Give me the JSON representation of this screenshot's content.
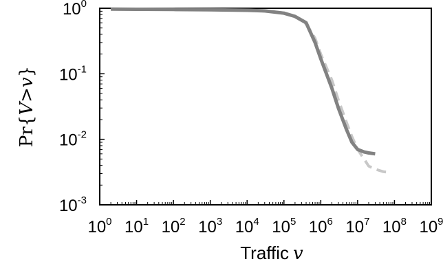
{
  "chart_data": {
    "type": "line",
    "xscale": "log",
    "yscale": "log",
    "xlim": [
      1,
      1000000000
    ],
    "ylim": [
      0.001,
      1
    ],
    "grid": false,
    "xlabel": {
      "text": "Traffic",
      "var": "v"
    },
    "ylabel": {
      "pr": "Pr",
      "open": "{",
      "expr": "V>v",
      "close": "}"
    },
    "x_ticks": [
      {
        "value": 1,
        "base": "10",
        "exp": "0"
      },
      {
        "value": 10,
        "base": "10",
        "exp": "1"
      },
      {
        "value": 100,
        "base": "10",
        "exp": "2"
      },
      {
        "value": 1000,
        "base": "10",
        "exp": "3"
      },
      {
        "value": 10000,
        "base": "10",
        "exp": "4"
      },
      {
        "value": 100000,
        "base": "10",
        "exp": "5"
      },
      {
        "value": 1000000,
        "base": "10",
        "exp": "6"
      },
      {
        "value": 10000000,
        "base": "10",
        "exp": "7"
      },
      {
        "value": 100000000,
        "base": "10",
        "exp": "8"
      },
      {
        "value": 1000000000,
        "base": "10",
        "exp": "9"
      }
    ],
    "y_ticks": [
      {
        "value": 1,
        "base": "10",
        "exp": "0"
      },
      {
        "value": 0.1,
        "base": "10",
        "exp": "-1"
      },
      {
        "value": 0.01,
        "base": "10",
        "exp": "-2"
      },
      {
        "value": 0.001,
        "base": "10",
        "exp": "-3"
      }
    ],
    "series": [
      {
        "style": "dashed",
        "color": "#c8c8c8",
        "points": [
          [
            2,
            0.97
          ],
          [
            10,
            0.965
          ],
          [
            100,
            0.96
          ],
          [
            1000,
            0.95
          ],
          [
            10000,
            0.935
          ],
          [
            30000,
            0.92
          ],
          [
            100000,
            0.85
          ],
          [
            200000,
            0.75
          ],
          [
            400000,
            0.58
          ],
          [
            700000,
            0.35
          ],
          [
            1000000,
            0.2
          ],
          [
            2000000,
            0.08
          ],
          [
            3000000,
            0.04
          ],
          [
            5000000,
            0.018
          ],
          [
            7000000,
            0.011
          ],
          [
            10000000,
            0.007
          ],
          [
            15000000,
            0.005
          ],
          [
            20000000,
            0.0039
          ],
          [
            30000000,
            0.0035
          ],
          [
            50000000,
            0.0032
          ],
          [
            80000000,
            0.0031
          ]
        ]
      },
      {
        "style": "solid",
        "color": "#828282",
        "points": [
          [
            2,
            0.97
          ],
          [
            10,
            0.965
          ],
          [
            100,
            0.958
          ],
          [
            1000,
            0.948
          ],
          [
            10000,
            0.93
          ],
          [
            30000,
            0.91
          ],
          [
            100000,
            0.84
          ],
          [
            200000,
            0.75
          ],
          [
            400000,
            0.6
          ],
          [
            700000,
            0.3
          ],
          [
            1000000,
            0.17
          ],
          [
            2000000,
            0.06
          ],
          [
            3000000,
            0.03
          ],
          [
            5000000,
            0.014
          ],
          [
            7000000,
            0.009
          ],
          [
            10000000,
            0.007
          ],
          [
            15000000,
            0.0064
          ],
          [
            20000000,
            0.0062
          ],
          [
            30000000,
            0.006
          ]
        ]
      }
    ]
  }
}
